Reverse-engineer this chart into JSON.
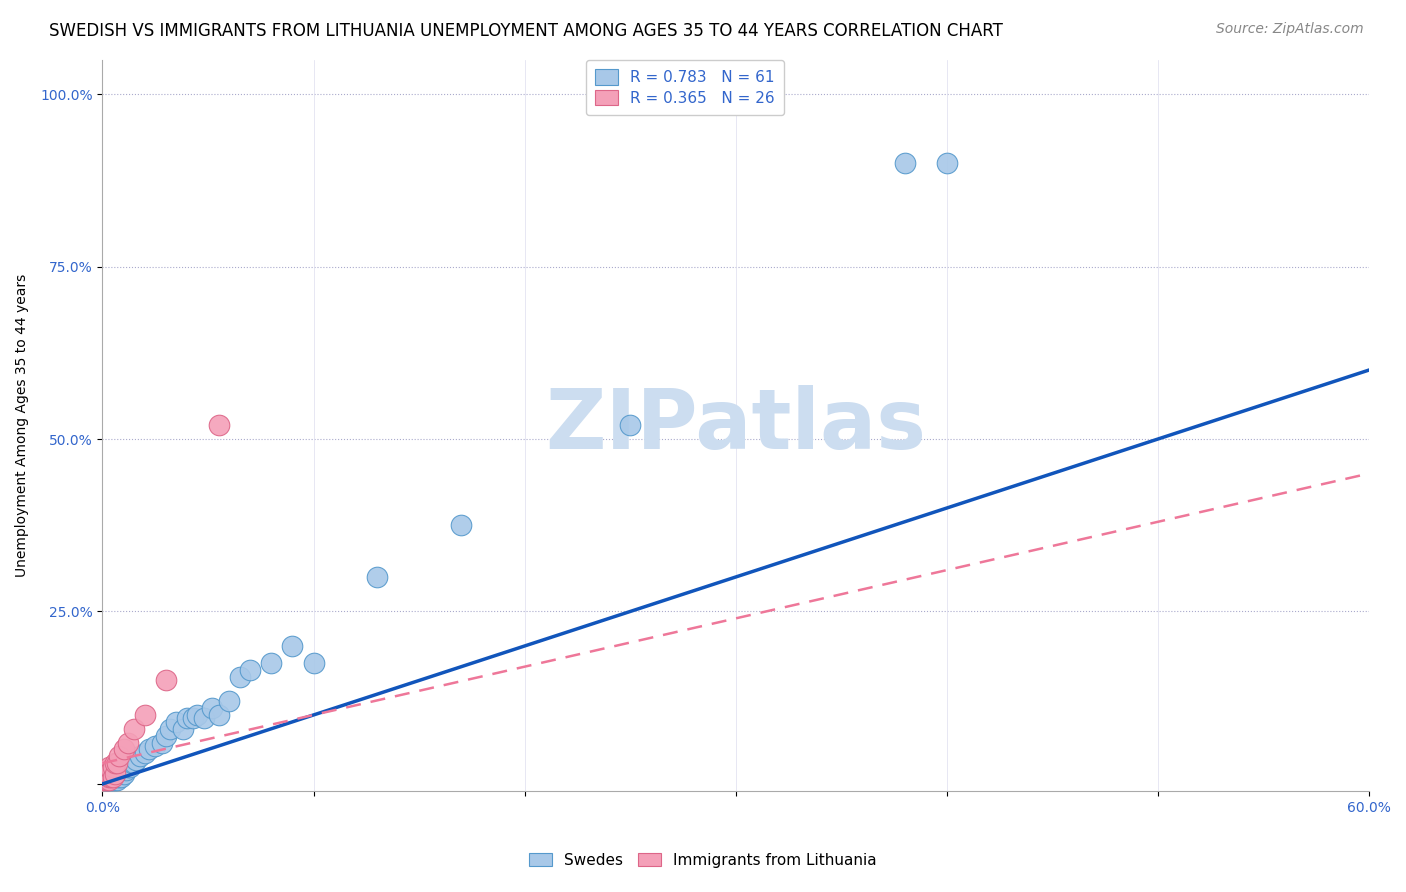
{
  "title": "SWEDISH VS IMMIGRANTS FROM LITHUANIA UNEMPLOYMENT AMONG AGES 35 TO 44 YEARS CORRELATION CHART",
  "source": "Source: ZipAtlas.com",
  "ylabel": "Unemployment Among Ages 35 to 44 years",
  "xlabel": "",
  "xlim": [
    0.0,
    0.6
  ],
  "ylim": [
    -0.01,
    1.05
  ],
  "yticks": [
    0.0,
    0.25,
    0.5,
    0.75,
    1.0
  ],
  "yticklabels": [
    "",
    "25.0%",
    "50.0%",
    "75.0%",
    "100.0%"
  ],
  "xtick_positions": [
    0.0,
    0.1,
    0.2,
    0.3,
    0.4,
    0.5,
    0.6
  ],
  "swedes_R": 0.783,
  "swedes_N": 61,
  "lithuania_R": 0.365,
  "lithuania_N": 26,
  "swede_color": "#a8c8e8",
  "lithuania_color": "#f4a0b8",
  "swede_edge_color": "#5599cc",
  "lithuania_edge_color": "#dd6688",
  "swede_line_color": "#1155bb",
  "lithuania_line_color": "#ee7799",
  "watermark": "ZIPatlas",
  "watermark_color": "#ccddf0",
  "legend_label_swedes": "Swedes",
  "legend_label_lithuania": "Immigrants from Lithuania",
  "title_fontsize": 12,
  "axis_label_fontsize": 10,
  "tick_fontsize": 10,
  "legend_fontsize": 11,
  "source_fontsize": 10,
  "watermark_fontsize": 60,
  "swedes_x": [
    0.001,
    0.001,
    0.002,
    0.002,
    0.002,
    0.003,
    0.003,
    0.003,
    0.003,
    0.004,
    0.004,
    0.004,
    0.005,
    0.005,
    0.005,
    0.005,
    0.006,
    0.006,
    0.006,
    0.007,
    0.007,
    0.007,
    0.008,
    0.008,
    0.008,
    0.009,
    0.009,
    0.01,
    0.01,
    0.011,
    0.012,
    0.013,
    0.014,
    0.015,
    0.016,
    0.018,
    0.02,
    0.022,
    0.025,
    0.028,
    0.03,
    0.032,
    0.035,
    0.038,
    0.04,
    0.043,
    0.045,
    0.048,
    0.052,
    0.055,
    0.06,
    0.065,
    0.07,
    0.08,
    0.09,
    0.1,
    0.13,
    0.17,
    0.25,
    0.38,
    0.4
  ],
  "swedes_y": [
    0.005,
    0.01,
    0.005,
    0.01,
    0.015,
    0.005,
    0.01,
    0.015,
    0.02,
    0.005,
    0.01,
    0.02,
    0.005,
    0.01,
    0.015,
    0.02,
    0.005,
    0.01,
    0.02,
    0.005,
    0.01,
    0.02,
    0.01,
    0.015,
    0.025,
    0.01,
    0.02,
    0.015,
    0.025,
    0.02,
    0.025,
    0.025,
    0.03,
    0.03,
    0.035,
    0.04,
    0.045,
    0.05,
    0.055,
    0.06,
    0.07,
    0.08,
    0.09,
    0.08,
    0.095,
    0.095,
    0.1,
    0.095,
    0.11,
    0.1,
    0.12,
    0.155,
    0.165,
    0.175,
    0.2,
    0.175,
    0.3,
    0.375,
    0.52,
    0.9,
    0.9
  ],
  "lithuania_x": [
    0.0,
    0.001,
    0.001,
    0.001,
    0.002,
    0.002,
    0.002,
    0.002,
    0.003,
    0.003,
    0.003,
    0.003,
    0.004,
    0.004,
    0.005,
    0.005,
    0.006,
    0.006,
    0.007,
    0.008,
    0.01,
    0.012,
    0.015,
    0.02,
    0.03,
    0.055
  ],
  "lithuania_y": [
    0.005,
    0.005,
    0.01,
    0.015,
    0.005,
    0.01,
    0.015,
    0.02,
    0.005,
    0.01,
    0.015,
    0.025,
    0.01,
    0.02,
    0.01,
    0.025,
    0.015,
    0.03,
    0.03,
    0.04,
    0.05,
    0.06,
    0.08,
    0.1,
    0.15,
    0.52
  ],
  "swede_line_x": [
    0.0,
    0.6
  ],
  "swede_line_y": [
    0.0,
    0.6
  ],
  "lith_line_x": [
    0.0,
    0.6
  ],
  "lith_line_y": [
    0.03,
    0.45
  ]
}
